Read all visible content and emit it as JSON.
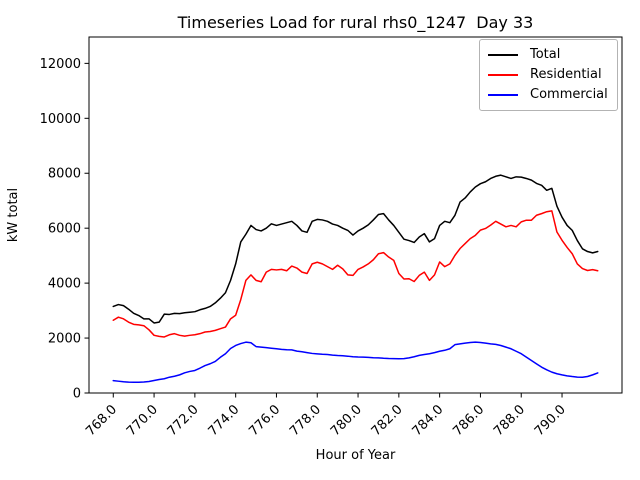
{
  "chart_data": {
    "type": "line",
    "title": "Timeseries Load for rural rhs0_1247  Day 33",
    "xlabel": "Hour of Year",
    "ylabel": "kW total",
    "xlim": [
      766.81,
      792.94
    ],
    "ylim": [
      0,
      12960
    ],
    "grid": false,
    "legend_position": "upper right",
    "xticks": [
      768,
      770,
      772,
      774,
      776,
      778,
      780,
      782,
      784,
      786,
      788,
      790
    ],
    "xtick_labels": [
      "768.0",
      "770.0",
      "772.0",
      "774.0",
      "776.0",
      "778.0",
      "780.0",
      "782.0",
      "784.0",
      "786.0",
      "788.0",
      "790.0"
    ],
    "yticks": [
      0,
      2000,
      4000,
      6000,
      8000,
      10000,
      12000
    ],
    "ytick_labels": [
      "0",
      "2000",
      "4000",
      "6000",
      "8000",
      "10000",
      "12000"
    ],
    "x": [
      768,
      768.25,
      768.5,
      768.75,
      769,
      769.25,
      769.5,
      769.75,
      770,
      770.25,
      770.5,
      770.75,
      771,
      771.25,
      771.5,
      771.75,
      772,
      772.25,
      772.5,
      772.75,
      773,
      773.25,
      773.5,
      773.75,
      774,
      774.25,
      774.5,
      774.75,
      775,
      775.25,
      775.5,
      775.75,
      776,
      776.25,
      776.5,
      776.75,
      777,
      777.25,
      777.5,
      777.75,
      778,
      778.25,
      778.5,
      778.75,
      779,
      779.25,
      779.5,
      779.75,
      780,
      780.25,
      780.5,
      780.75,
      781,
      781.25,
      781.5,
      781.75,
      782,
      782.25,
      782.5,
      782.75,
      783,
      783.25,
      783.5,
      783.75,
      784,
      784.25,
      784.5,
      784.75,
      785,
      785.25,
      785.5,
      785.75,
      786,
      786.25,
      786.5,
      786.75,
      787,
      787.25,
      787.5,
      787.75,
      788,
      788.25,
      788.5,
      788.75,
      789,
      789.25,
      789.5,
      789.75,
      790,
      790.25,
      790.5,
      790.75,
      791,
      791.25,
      791.5,
      791.75
    ],
    "series": [
      {
        "name": "Total",
        "color": "#000000",
        "values": [
          3150,
          3220,
          3180,
          3050,
          2900,
          2820,
          2700,
          2700,
          2550,
          2580,
          2870,
          2860,
          2900,
          2890,
          2920,
          2940,
          2960,
          3030,
          3080,
          3150,
          3280,
          3450,
          3650,
          4100,
          4700,
          5500,
          5780,
          6100,
          5950,
          5900,
          6000,
          6160,
          6100,
          6150,
          6200,
          6250,
          6100,
          5900,
          5850,
          6250,
          6320,
          6300,
          6250,
          6150,
          6100,
          6000,
          5920,
          5750,
          5900,
          6000,
          6120,
          6300,
          6500,
          6530,
          6300,
          6100,
          5850,
          5600,
          5550,
          5480,
          5680,
          5800,
          5500,
          5620,
          6100,
          6250,
          6200,
          6470,
          6950,
          7100,
          7320,
          7500,
          7620,
          7690,
          7810,
          7890,
          7930,
          7870,
          7810,
          7870,
          7860,
          7810,
          7750,
          7630,
          7560,
          7380,
          7450,
          6800,
          6400,
          6100,
          5920,
          5550,
          5250,
          5150,
          5100,
          5150
        ]
      },
      {
        "name": "Residential",
        "color": "#ff0000",
        "values": [
          2650,
          2760,
          2700,
          2580,
          2500,
          2480,
          2450,
          2300,
          2100,
          2060,
          2040,
          2120,
          2160,
          2100,
          2070,
          2100,
          2120,
          2160,
          2220,
          2240,
          2280,
          2340,
          2400,
          2700,
          2830,
          3400,
          4100,
          4300,
          4100,
          4050,
          4400,
          4500,
          4480,
          4500,
          4450,
          4620,
          4550,
          4400,
          4350,
          4700,
          4760,
          4700,
          4600,
          4500,
          4650,
          4520,
          4300,
          4280,
          4500,
          4590,
          4700,
          4850,
          5070,
          5110,
          4950,
          4830,
          4350,
          4150,
          4160,
          4060,
          4280,
          4400,
          4100,
          4300,
          4770,
          4600,
          4700,
          5010,
          5260,
          5440,
          5620,
          5740,
          5930,
          5990,
          6110,
          6250,
          6150,
          6050,
          6100,
          6050,
          6230,
          6290,
          6290,
          6470,
          6530,
          6600,
          6630,
          5860,
          5560,
          5300,
          5070,
          4700,
          4530,
          4460,
          4490,
          4450
        ]
      },
      {
        "name": "Commercial",
        "color": "#0000ff",
        "values": [
          450,
          430,
          410,
          395,
          390,
          390,
          400,
          420,
          455,
          490,
          520,
          575,
          610,
          660,
          735,
          785,
          820,
          905,
          1000,
          1065,
          1150,
          1300,
          1430,
          1620,
          1730,
          1800,
          1850,
          1830,
          1690,
          1670,
          1650,
          1630,
          1610,
          1590,
          1575,
          1570,
          1525,
          1500,
          1470,
          1440,
          1425,
          1410,
          1400,
          1380,
          1365,
          1355,
          1340,
          1320,
          1310,
          1305,
          1295,
          1285,
          1280,
          1265,
          1255,
          1250,
          1245,
          1250,
          1280,
          1320,
          1370,
          1400,
          1430,
          1470,
          1520,
          1555,
          1610,
          1760,
          1790,
          1815,
          1840,
          1850,
          1840,
          1815,
          1790,
          1770,
          1730,
          1670,
          1610,
          1520,
          1430,
          1305,
          1185,
          1060,
          940,
          845,
          760,
          700,
          660,
          625,
          600,
          580,
          575,
          600,
          660,
          730
        ]
      }
    ]
  }
}
